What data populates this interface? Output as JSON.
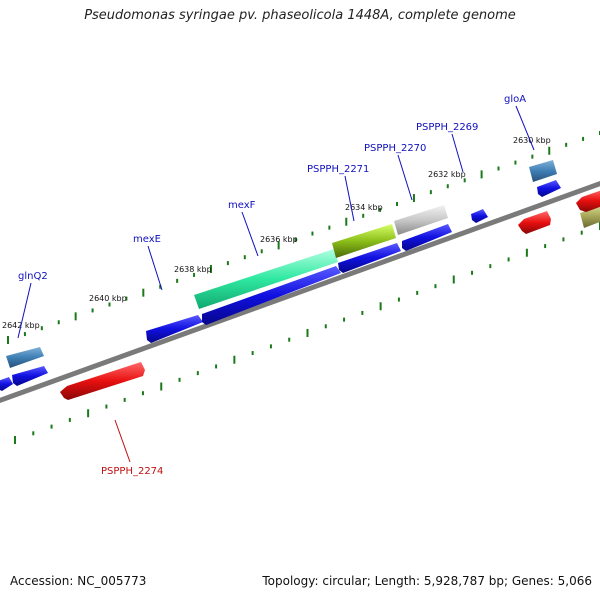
{
  "title": "Pseudomonas syringae pv. phaseolicola 1448A, complete genome",
  "footer": {
    "accession": "Accession: NC_005773",
    "summary": "Topology: circular; Length: 5,928,787 bp; Genes: 5,066"
  },
  "colors": {
    "forward_cds": "#1010e0",
    "reverse_cds": "#e01010",
    "backbone": "#7a7a7a",
    "tick": "#1a7a1a",
    "label_forward": "#1010c0",
    "label_reverse": "#c01010"
  },
  "ticks": [
    {
      "label": "2642 kbp"
    },
    {
      "label": "2640 kbp"
    },
    {
      "label": "2638 kbp"
    },
    {
      "label": "2636 kbp"
    },
    {
      "label": "2634 kbp"
    },
    {
      "label": "2632 kbp"
    },
    {
      "label": "2630 kbp"
    }
  ],
  "gene_labels": [
    {
      "name": "glnQ2",
      "strand": "forward"
    },
    {
      "name": "mexE",
      "strand": "forward"
    },
    {
      "name": "mexF",
      "strand": "forward"
    },
    {
      "name": "PSPPH_2271",
      "strand": "forward"
    },
    {
      "name": "PSPPH_2270",
      "strand": "forward"
    },
    {
      "name": "PSPPH_2269",
      "strand": "forward"
    },
    {
      "name": "gloA",
      "strand": "forward"
    },
    {
      "name": "PSPPH_2274",
      "strand": "reverse"
    }
  ]
}
